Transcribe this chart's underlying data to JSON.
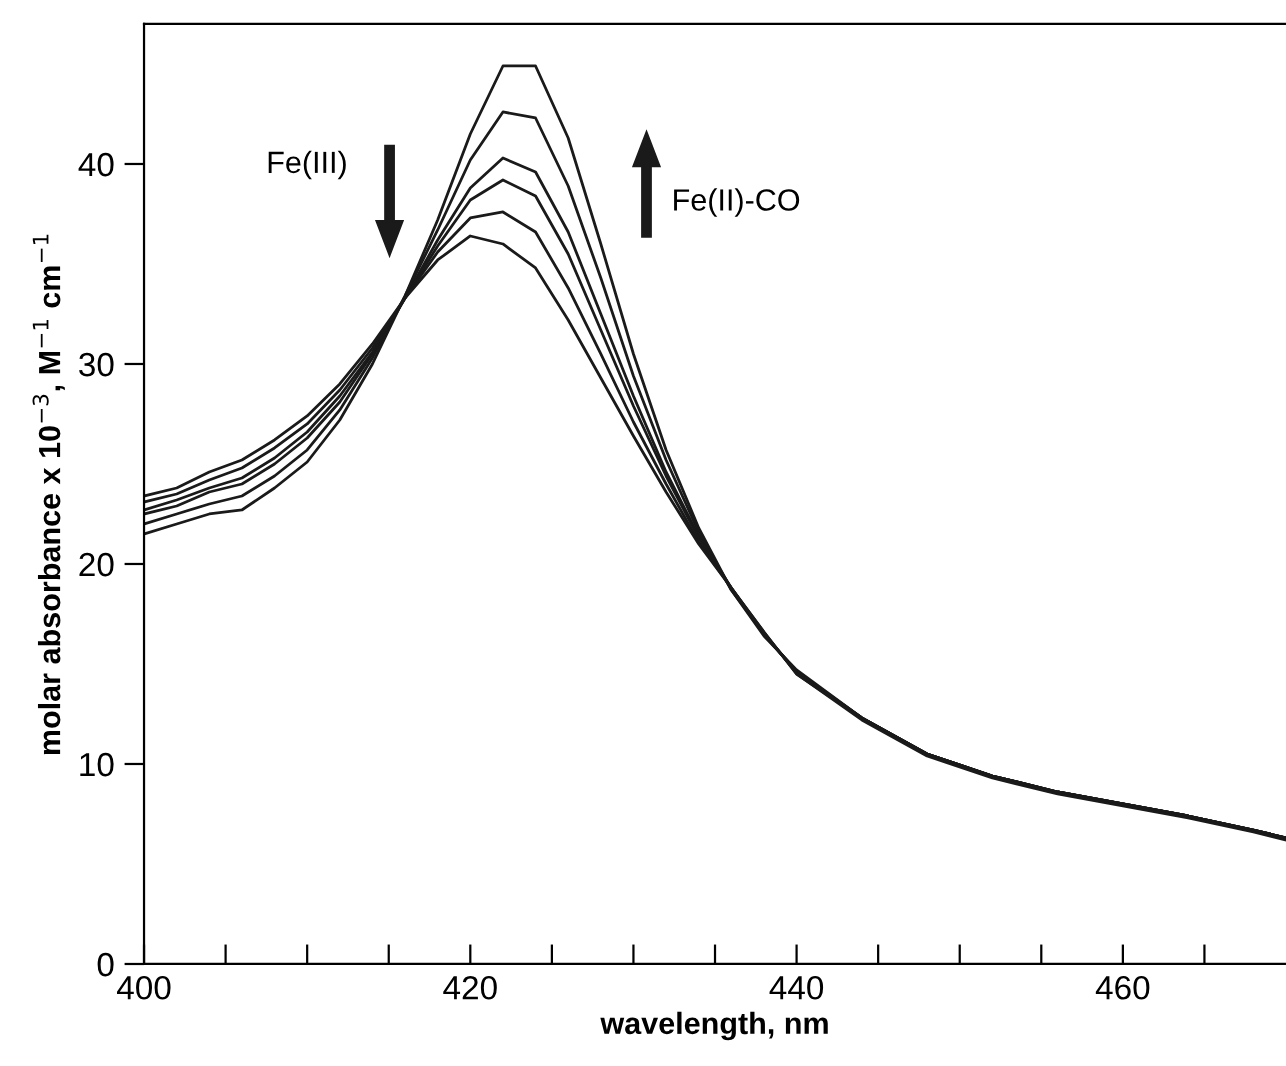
{
  "chart_data": {
    "type": "line",
    "xlabel": "wavelength, nm",
    "ylabel": "molar absorbance x 10$^{−3}$, M$^{−1}$ cm$^{−1}$",
    "annotations": [
      "Fe(III)",
      "Fe(II)-CO"
    ],
    "x": [
      400,
      402,
      404,
      406,
      408,
      410,
      412,
      414,
      416,
      418,
      420,
      422,
      424,
      426,
      428,
      430,
      432,
      434,
      436,
      438,
      440,
      444,
      448,
      452,
      456,
      460,
      464,
      468,
      470
    ],
    "series": [
      {
        "color": "#1a1a1a",
        "values": [
          21.5,
          22.0,
          22.5,
          22.7,
          23.8,
          25.1,
          27.2,
          30.0,
          33.4,
          37.2,
          41.5,
          44.9,
          44.9,
          41.3,
          36.0,
          30.5,
          25.7,
          21.8,
          18.7,
          16.4,
          14.7,
          12.3,
          10.5,
          9.4,
          8.6,
          8.0,
          7.4,
          6.7,
          6.3
        ]
      },
      {
        "color": "#1a1a1a",
        "values": [
          22.0,
          22.5,
          23.0,
          23.4,
          24.4,
          25.7,
          27.7,
          30.3,
          33.4,
          36.7,
          40.2,
          42.6,
          42.3,
          38.9,
          34.3,
          29.4,
          25.2,
          21.6,
          18.7,
          16.5,
          14.6,
          12.3,
          10.5,
          9.4,
          8.6,
          8.0,
          7.4,
          6.7,
          6.3
        ]
      },
      {
        "color": "#1a1a1a",
        "values": [
          22.5,
          22.9,
          23.6,
          24.0,
          25.0,
          26.3,
          28.1,
          30.5,
          33.3,
          36.2,
          38.8,
          40.3,
          39.6,
          36.6,
          32.5,
          28.4,
          24.6,
          21.4,
          18.8,
          16.5,
          14.6,
          12.3,
          10.5,
          9.4,
          8.6,
          8.0,
          7.4,
          6.7,
          6.3
        ]
      },
      {
        "color": "#1a1a1a",
        "values": [
          22.7,
          23.2,
          23.8,
          24.3,
          25.3,
          26.6,
          28.4,
          30.6,
          33.3,
          35.9,
          38.2,
          39.2,
          38.4,
          35.5,
          31.7,
          27.9,
          24.4,
          21.3,
          18.8,
          16.5,
          14.6,
          12.3,
          10.5,
          9.4,
          8.6,
          8.0,
          7.4,
          6.7,
          6.3
        ]
      },
      {
        "color": "#1a1a1a",
        "values": [
          23.1,
          23.5,
          24.2,
          24.8,
          25.8,
          27.0,
          28.7,
          30.8,
          33.3,
          35.6,
          37.3,
          37.6,
          36.6,
          33.8,
          30.5,
          27.1,
          24.0,
          21.1,
          18.8,
          16.6,
          14.5,
          12.3,
          10.5,
          9.4,
          8.6,
          8.0,
          7.4,
          6.7,
          6.3
        ]
      },
      {
        "color": "#1a1a1a",
        "values": [
          23.4,
          23.8,
          24.6,
          25.2,
          26.2,
          27.4,
          29.0,
          31.0,
          33.3,
          35.2,
          36.4,
          36.0,
          34.8,
          32.2,
          29.3,
          26.4,
          23.6,
          21.0,
          18.8,
          16.6,
          14.5,
          12.2,
          10.4,
          9.3,
          8.5,
          7.9,
          7.3,
          6.6,
          6.2
        ]
      }
    ],
    "xlim": [
      400,
      470
    ],
    "xticks": [
      400,
      {
        "value": 405,
        "label": null
      },
      {
        "value": 410,
        "label": null
      },
      {
        "value": 415,
        "label": null
      },
      420,
      {
        "value": 425,
        "label": null
      },
      {
        "value": 430,
        "label": null
      },
      {
        "value": 435,
        "label": null
      },
      440,
      {
        "value": 445,
        "label": null
      },
      {
        "value": 450,
        "label": null
      },
      {
        "value": 455,
        "label": null
      },
      460,
      {
        "value": 465,
        "label": null
      }
    ],
    "ylim": [
      0,
      47
    ],
    "yticks": [
      0,
      10,
      20,
      30,
      40
    ]
  }
}
